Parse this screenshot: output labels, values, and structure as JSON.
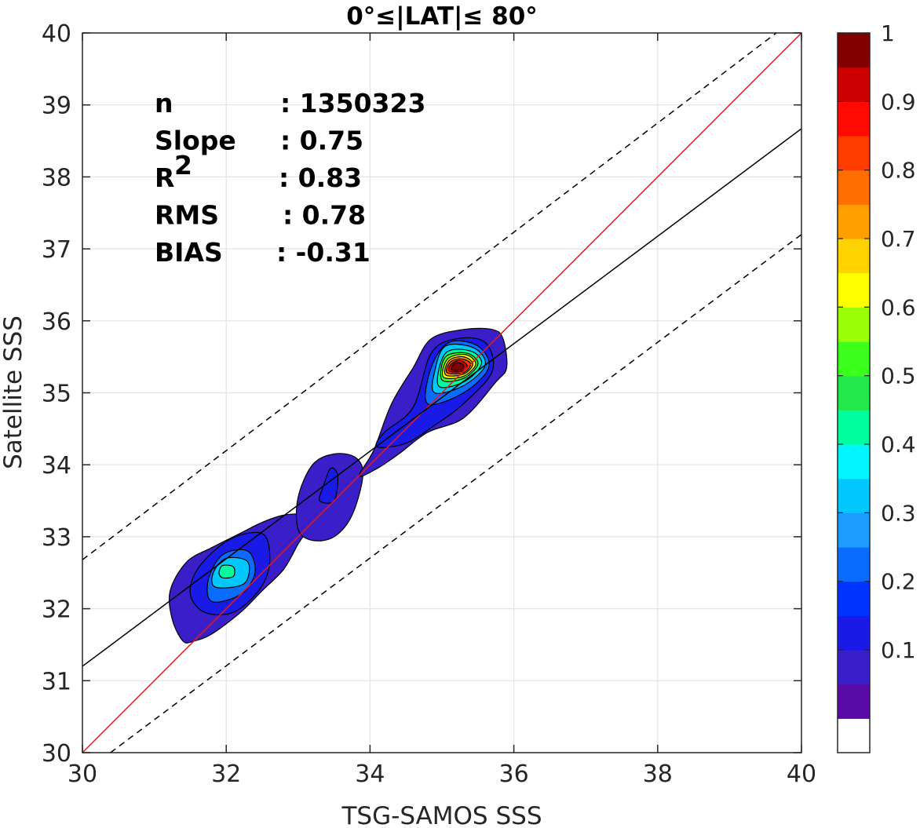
{
  "chart_data": {
    "type": "contour",
    "title": "0°≤|LAT|≤ 80°",
    "xlabel": "TSG-SAMOS SSS",
    "ylabel": "Satellite SSS",
    "xlim": [
      30,
      40
    ],
    "ylim": [
      30,
      40
    ],
    "xticks": [
      "30",
      "32",
      "34",
      "36",
      "38",
      "40"
    ],
    "yticks": [
      "30",
      "31",
      "32",
      "33",
      "34",
      "35",
      "36",
      "37",
      "38",
      "39",
      "40"
    ],
    "grid": true,
    "stats": [
      {
        "label": "n",
        "value": ": 1350323"
      },
      {
        "label": "Slope",
        "value": ": 0.75"
      },
      {
        "label": "R",
        "sup": "2",
        "value": ": 0.83"
      },
      {
        "label": "RMS",
        "value": ": 0.78"
      },
      {
        "label": "BIAS",
        "value": ": -0.31"
      }
    ],
    "reference_lines": [
      {
        "type": "one-to-one",
        "color": "#e8191c",
        "style": "solid",
        "points": [
          [
            30,
            30
          ],
          [
            40,
            40
          ]
        ]
      },
      {
        "type": "regression",
        "color": "#000000",
        "style": "solid",
        "points": [
          [
            30,
            31.2
          ],
          [
            40,
            38.67
          ]
        ]
      },
      {
        "type": "offset-upper",
        "color": "#000000",
        "style": "dashed",
        "points": [
          [
            30,
            32.68
          ],
          [
            39.65,
            40
          ]
        ]
      },
      {
        "type": "offset-lower",
        "color": "#000000",
        "style": "dashed",
        "points": [
          [
            30.39,
            30
          ],
          [
            40,
            37.2
          ]
        ]
      }
    ],
    "colorbar": {
      "ticks": [
        "0.1",
        "0.2",
        "0.3",
        "0.4",
        "0.5",
        "0.6",
        "0.7",
        "0.8",
        "0.9",
        "1"
      ],
      "tick_values": [
        0.1,
        0.2,
        0.3,
        0.4,
        0.5,
        0.6,
        0.7,
        0.8,
        0.9,
        1.0
      ],
      "levels": [
        0,
        0.05,
        0.1,
        0.15,
        0.2,
        0.25,
        0.3,
        0.35,
        0.4,
        0.45,
        0.5,
        0.55,
        0.6,
        0.65,
        0.7,
        0.75,
        0.8,
        0.85,
        0.9,
        0.95,
        1.0
      ],
      "colors": [
        "#ffffff",
        "#5a0aa6",
        "#3a1fc8",
        "#1a1ae6",
        "#0033ff",
        "#0a6cff",
        "#1e9bff",
        "#00c8ff",
        "#00f5ff",
        "#00ff9c",
        "#22e84a",
        "#3cff1e",
        "#9bff0a",
        "#ffff00",
        "#ffd200",
        "#ffa000",
        "#ff6e00",
        "#ff3c00",
        "#ff0a00",
        "#cc0000",
        "#800000"
      ]
    },
    "contours": [
      {
        "level": 0.05,
        "x": [
          31.4,
          31.55,
          31.8,
          32.2,
          32.5,
          32.8,
          33.0,
          33.15,
          33.05,
          32.8,
          32.5,
          32.2,
          31.8,
          31.45,
          31.22,
          31.25
        ],
        "y": [
          31.55,
          31.55,
          31.65,
          31.95,
          32.25,
          32.55,
          32.9,
          33.15,
          33.3,
          33.3,
          33.2,
          33.05,
          32.85,
          32.65,
          32.25,
          31.85
        ]
      },
      {
        "level": 0.05,
        "x": [
          33.0,
          33.2,
          33.5,
          33.75,
          33.9,
          33.8,
          33.5,
          33.2,
          33.0
        ],
        "y": [
          33.1,
          32.95,
          33.0,
          33.3,
          33.85,
          34.1,
          34.15,
          34.0,
          33.55
        ]
      },
      {
        "level": 0.05,
        "x": [
          33.85,
          34.1,
          34.4,
          34.8,
          35.3,
          35.75,
          35.9,
          35.85,
          35.7,
          35.3,
          34.85,
          34.6,
          34.3,
          34.05
        ],
        "y": [
          33.85,
          33.95,
          34.15,
          34.45,
          34.65,
          35.15,
          35.35,
          35.75,
          35.88,
          35.88,
          35.75,
          35.35,
          34.85,
          34.2
        ]
      },
      {
        "level": 0.1,
        "x": [
          31.7,
          32.1,
          32.45,
          32.6,
          32.55,
          32.3,
          31.95,
          31.6,
          31.5
        ],
        "y": [
          31.95,
          31.95,
          32.25,
          32.6,
          33.0,
          33.05,
          32.9,
          32.55,
          32.2
        ]
      },
      {
        "level": 0.1,
        "x": [
          33.3,
          33.5,
          33.55,
          33.45,
          33.35
        ],
        "y": [
          33.5,
          33.5,
          33.85,
          33.95,
          33.7
        ]
      },
      {
        "level": 0.1,
        "x": [
          34.1,
          34.5,
          34.9,
          35.3,
          35.7,
          35.6,
          35.2,
          34.85,
          34.6,
          34.2
        ],
        "y": [
          34.25,
          34.3,
          34.55,
          34.85,
          35.3,
          35.7,
          35.75,
          35.55,
          34.8,
          34.45
        ]
      },
      {
        "level": 0.2,
        "x": [
          31.8,
          32.2,
          32.4,
          32.3,
          31.95,
          31.75
        ],
        "y": [
          32.1,
          32.2,
          32.5,
          32.8,
          32.75,
          32.4
        ]
      },
      {
        "level": 0.2,
        "x": [
          34.8,
          35.3,
          35.65,
          35.5,
          35.1,
          34.85
        ],
        "y": [
          34.85,
          35.0,
          35.35,
          35.65,
          35.7,
          35.35
        ]
      },
      {
        "level": 0.3,
        "x": [
          31.85,
          32.25,
          32.3,
          32.0,
          31.82
        ],
        "y": [
          32.3,
          32.35,
          32.65,
          32.7,
          32.5
        ]
      },
      {
        "level": 0.3,
        "x": [
          34.9,
          35.3,
          35.6,
          35.45,
          35.05,
          34.9
        ],
        "y": [
          35.0,
          35.1,
          35.38,
          35.62,
          35.65,
          35.3
        ]
      },
      {
        "level": 0.4,
        "x": [
          31.95,
          32.1,
          32.1,
          31.95,
          31.9
        ],
        "y": [
          32.43,
          32.45,
          32.58,
          32.6,
          32.5
        ]
      },
      {
        "level": 0.4,
        "x": [
          34.95,
          35.3,
          35.55,
          35.4,
          35.05
        ],
        "y": [
          35.1,
          35.15,
          35.4,
          35.58,
          35.55
        ]
      },
      {
        "level": 0.5,
        "x": [
          35.0,
          35.3,
          35.5,
          35.35,
          35.05
        ],
        "y": [
          35.18,
          35.2,
          35.4,
          35.55,
          35.5
        ]
      },
      {
        "level": 0.6,
        "x": [
          35.02,
          35.3,
          35.47,
          35.33,
          35.08
        ],
        "y": [
          35.22,
          35.23,
          35.4,
          35.53,
          35.47
        ]
      },
      {
        "level": 0.7,
        "x": [
          35.05,
          35.3,
          35.43,
          35.3,
          35.1
        ],
        "y": [
          35.25,
          35.26,
          35.4,
          35.5,
          35.45
        ]
      },
      {
        "level": 0.8,
        "x": [
          35.07,
          35.3,
          35.4,
          35.28,
          35.12
        ],
        "y": [
          35.28,
          35.28,
          35.4,
          35.47,
          35.43
        ]
      },
      {
        "level": 0.9,
        "x": [
          35.1,
          35.28,
          35.35,
          35.25,
          35.13
        ],
        "y": [
          35.3,
          35.3,
          35.38,
          35.45,
          35.4
        ]
      },
      {
        "level": 0.95,
        "x": [
          35.14,
          35.26,
          35.3,
          35.22,
          35.15
        ],
        "y": [
          35.32,
          35.32,
          35.38,
          35.42,
          35.38
        ]
      }
    ]
  }
}
